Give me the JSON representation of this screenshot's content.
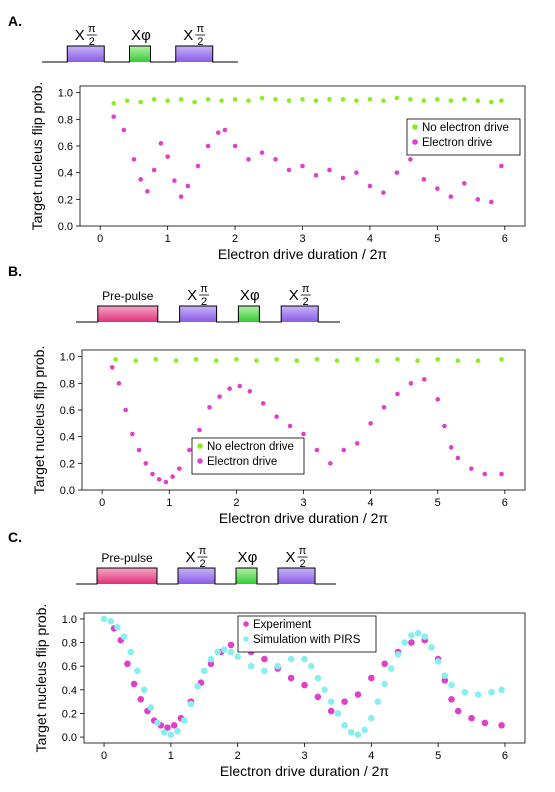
{
  "colors": {
    "green_marker": "#88ee22",
    "magenta_marker": "#e040c8",
    "cyan_marker": "#88eeee",
    "pulse_purple": "#8a5ce6",
    "pulse_green": "#33cc33",
    "pulse_magenta": "#e0307a"
  },
  "panels": [
    {
      "label": "A.",
      "pulses": [
        {
          "kind": "x-pi2",
          "prefix": "X",
          "num": "π",
          "den": "2",
          "color": "purple"
        },
        {
          "kind": "x-phi",
          "prefix": "X",
          "sym": "φ",
          "color": "green"
        },
        {
          "kind": "x-pi2",
          "prefix": "X",
          "num": "π",
          "den": "2",
          "color": "purple"
        }
      ]
    },
    {
      "label": "B.",
      "pulses": [
        {
          "kind": "pre",
          "text": "Pre-pulse",
          "color": "magenta"
        },
        {
          "kind": "x-pi2",
          "prefix": "X",
          "num": "π",
          "den": "2",
          "color": "purple"
        },
        {
          "kind": "x-phi",
          "prefix": "X",
          "sym": "φ",
          "color": "green"
        },
        {
          "kind": "x-pi2",
          "prefix": "X",
          "num": "π",
          "den": "2",
          "color": "purple"
        }
      ]
    },
    {
      "label": "C.",
      "pulses": [
        {
          "kind": "pre",
          "text": "Pre-pulse",
          "color": "magenta"
        },
        {
          "kind": "x-pi2",
          "prefix": "X",
          "num": "π",
          "den": "2",
          "color": "purple"
        },
        {
          "kind": "x-phi",
          "prefix": "X",
          "sym": "φ",
          "color": "green"
        },
        {
          "kind": "x-pi2",
          "prefix": "X",
          "num": "π",
          "den": "2",
          "color": "purple"
        }
      ]
    }
  ],
  "chart_data": [
    {
      "type": "scatter",
      "xlabel": "Electron drive duration / 2π",
      "ylabel": "Target nucleus flip prob.",
      "xlim": [
        -0.3,
        6.3
      ],
      "ylim": [
        0,
        1.05
      ],
      "xticks": [
        "0",
        "1",
        "2",
        "3",
        "4",
        "5",
        "6"
      ],
      "yticks": [
        "0.0",
        "0.2",
        "0.4",
        "0.6",
        "0.8",
        "1.0"
      ],
      "legend": {
        "position": "right",
        "entries": [
          "No electron drive",
          "Electron drive"
        ]
      },
      "series": [
        {
          "name": "No electron drive",
          "color": "green",
          "points": [
            [
              0.2,
              0.92
            ],
            [
              0.4,
              0.94
            ],
            [
              0.6,
              0.93
            ],
            [
              0.8,
              0.95
            ],
            [
              1.0,
              0.94
            ],
            [
              1.2,
              0.95
            ],
            [
              1.4,
              0.93
            ],
            [
              1.6,
              0.95
            ],
            [
              1.8,
              0.94
            ],
            [
              2.0,
              0.95
            ],
            [
              2.2,
              0.94
            ],
            [
              2.4,
              0.96
            ],
            [
              2.6,
              0.95
            ],
            [
              2.8,
              0.94
            ],
            [
              3.0,
              0.95
            ],
            [
              3.2,
              0.94
            ],
            [
              3.4,
              0.95
            ],
            [
              3.6,
              0.95
            ],
            [
              3.8,
              0.94
            ],
            [
              4.0,
              0.95
            ],
            [
              4.2,
              0.94
            ],
            [
              4.4,
              0.96
            ],
            [
              4.6,
              0.95
            ],
            [
              4.8,
              0.94
            ],
            [
              5.0,
              0.95
            ],
            [
              5.2,
              0.94
            ],
            [
              5.4,
              0.95
            ],
            [
              5.6,
              0.94
            ],
            [
              5.8,
              0.93
            ],
            [
              5.95,
              0.94
            ]
          ]
        },
        {
          "name": "Electron drive",
          "color": "magenta",
          "points": [
            [
              0.2,
              0.82
            ],
            [
              0.35,
              0.72
            ],
            [
              0.5,
              0.5
            ],
            [
              0.6,
              0.35
            ],
            [
              0.7,
              0.26
            ],
            [
              0.8,
              0.42
            ],
            [
              0.9,
              0.62
            ],
            [
              1.0,
              0.52
            ],
            [
              1.1,
              0.34
            ],
            [
              1.2,
              0.22
            ],
            [
              1.3,
              0.3
            ],
            [
              1.45,
              0.45
            ],
            [
              1.6,
              0.6
            ],
            [
              1.75,
              0.7
            ],
            [
              1.85,
              0.72
            ],
            [
              2.0,
              0.6
            ],
            [
              2.2,
              0.5
            ],
            [
              2.4,
              0.55
            ],
            [
              2.6,
              0.5
            ],
            [
              2.8,
              0.42
            ],
            [
              3.0,
              0.45
            ],
            [
              3.2,
              0.38
            ],
            [
              3.4,
              0.42
            ],
            [
              3.6,
              0.36
            ],
            [
              3.8,
              0.4
            ],
            [
              4.0,
              0.3
            ],
            [
              4.2,
              0.25
            ],
            [
              4.4,
              0.4
            ],
            [
              4.6,
              0.5
            ],
            [
              4.8,
              0.35
            ],
            [
              5.0,
              0.28
            ],
            [
              5.2,
              0.22
            ],
            [
              5.4,
              0.32
            ],
            [
              5.6,
              0.2
            ],
            [
              5.8,
              0.18
            ],
            [
              5.95,
              0.45
            ]
          ]
        }
      ]
    },
    {
      "type": "scatter",
      "xlabel": "Electron drive duration / 2π",
      "ylabel": "Target nucleus flip prob.",
      "xlim": [
        -0.3,
        6.3
      ],
      "ylim": [
        0,
        1.05
      ],
      "xticks": [
        "0",
        "1",
        "2",
        "3",
        "4",
        "5",
        "6"
      ],
      "yticks": [
        "0.0",
        "0.2",
        "0.4",
        "0.6",
        "0.8",
        "1.0"
      ],
      "legend": {
        "position": "bottom-left",
        "entries": [
          "No electron drive",
          "Electron drive"
        ]
      },
      "series": [
        {
          "name": "No electron drive",
          "color": "green",
          "points": [
            [
              0.2,
              0.98
            ],
            [
              0.5,
              0.97
            ],
            [
              0.8,
              0.98
            ],
            [
              1.1,
              0.97
            ],
            [
              1.4,
              0.98
            ],
            [
              1.7,
              0.97
            ],
            [
              2.0,
              0.98
            ],
            [
              2.3,
              0.97
            ],
            [
              2.6,
              0.98
            ],
            [
              2.9,
              0.97
            ],
            [
              3.2,
              0.98
            ],
            [
              3.5,
              0.97
            ],
            [
              3.8,
              0.98
            ],
            [
              4.1,
              0.97
            ],
            [
              4.4,
              0.98
            ],
            [
              4.7,
              0.97
            ],
            [
              5.0,
              0.98
            ],
            [
              5.3,
              0.97
            ],
            [
              5.6,
              0.97
            ],
            [
              5.95,
              0.98
            ]
          ]
        },
        {
          "name": "Electron drive",
          "color": "magenta",
          "points": [
            [
              0.15,
              0.92
            ],
            [
              0.25,
              0.8
            ],
            [
              0.35,
              0.6
            ],
            [
              0.45,
              0.42
            ],
            [
              0.55,
              0.3
            ],
            [
              0.65,
              0.2
            ],
            [
              0.75,
              0.12
            ],
            [
              0.85,
              0.08
            ],
            [
              0.95,
              0.06
            ],
            [
              1.05,
              0.1
            ],
            [
              1.15,
              0.16
            ],
            [
              1.3,
              0.3
            ],
            [
              1.45,
              0.45
            ],
            [
              1.6,
              0.62
            ],
            [
              1.75,
              0.7
            ],
            [
              1.9,
              0.76
            ],
            [
              2.05,
              0.78
            ],
            [
              2.2,
              0.74
            ],
            [
              2.4,
              0.65
            ],
            [
              2.6,
              0.55
            ],
            [
              2.8,
              0.48
            ],
            [
              3.0,
              0.42
            ],
            [
              3.2,
              0.3
            ],
            [
              3.4,
              0.2
            ],
            [
              3.6,
              0.3
            ],
            [
              3.8,
              0.35
            ],
            [
              4.0,
              0.5
            ],
            [
              4.2,
              0.62
            ],
            [
              4.4,
              0.72
            ],
            [
              4.6,
              0.8
            ],
            [
              4.8,
              0.83
            ],
            [
              5.0,
              0.68
            ],
            [
              5.1,
              0.48
            ],
            [
              5.2,
              0.32
            ],
            [
              5.3,
              0.24
            ],
            [
              5.5,
              0.16
            ],
            [
              5.7,
              0.12
            ],
            [
              5.95,
              0.12
            ]
          ]
        }
      ]
    },
    {
      "type": "scatter",
      "xlabel": "Electron drive duration / 2π",
      "ylabel": "Target nucleus flip prob.",
      "xlim": [
        -0.3,
        6.3
      ],
      "ylim": [
        -0.05,
        1.05
      ],
      "xticks": [
        "0",
        "1",
        "2",
        "3",
        "4",
        "5",
        "6"
      ],
      "yticks": [
        "0.0",
        "0.2",
        "0.4",
        "0.6",
        "0.8",
        "1.0"
      ],
      "legend": {
        "position": "top-center",
        "entries": [
          "Experiment",
          "Simulation with PIRS"
        ]
      },
      "series": [
        {
          "name": "Experiment",
          "color": "magenta",
          "points": [
            [
              0.15,
              0.92
            ],
            [
              0.25,
              0.82
            ],
            [
              0.35,
              0.62
            ],
            [
              0.45,
              0.45
            ],
            [
              0.55,
              0.32
            ],
            [
              0.65,
              0.22
            ],
            [
              0.75,
              0.14
            ],
            [
              0.85,
              0.1
            ],
            [
              0.95,
              0.08
            ],
            [
              1.05,
              0.1
            ],
            [
              1.15,
              0.16
            ],
            [
              1.3,
              0.3
            ],
            [
              1.45,
              0.46
            ],
            [
              1.6,
              0.62
            ],
            [
              1.75,
              0.72
            ],
            [
              1.9,
              0.78
            ],
            [
              2.05,
              0.76
            ],
            [
              2.2,
              0.72
            ],
            [
              2.4,
              0.66
            ],
            [
              2.6,
              0.58
            ],
            [
              2.8,
              0.5
            ],
            [
              3.0,
              0.44
            ],
            [
              3.2,
              0.34
            ],
            [
              3.4,
              0.22
            ],
            [
              3.6,
              0.3
            ],
            [
              3.8,
              0.36
            ],
            [
              4.0,
              0.5
            ],
            [
              4.2,
              0.62
            ],
            [
              4.4,
              0.72
            ],
            [
              4.6,
              0.8
            ],
            [
              4.8,
              0.82
            ],
            [
              5.0,
              0.66
            ],
            [
              5.1,
              0.48
            ],
            [
              5.2,
              0.32
            ],
            [
              5.3,
              0.22
            ],
            [
              5.5,
              0.16
            ],
            [
              5.7,
              0.12
            ],
            [
              5.95,
              0.1
            ]
          ]
        },
        {
          "name": "Simulation with PIRS",
          "color": "cyan",
          "points": [
            [
              0.0,
              1.0
            ],
            [
              0.1,
              0.98
            ],
            [
              0.2,
              0.93
            ],
            [
              0.3,
              0.85
            ],
            [
              0.4,
              0.72
            ],
            [
              0.5,
              0.56
            ],
            [
              0.6,
              0.4
            ],
            [
              0.7,
              0.25
            ],
            [
              0.8,
              0.12
            ],
            [
              0.9,
              0.04
            ],
            [
              1.0,
              0.02
            ],
            [
              1.1,
              0.05
            ],
            [
              1.2,
              0.14
            ],
            [
              1.3,
              0.28
            ],
            [
              1.4,
              0.43
            ],
            [
              1.5,
              0.56
            ],
            [
              1.6,
              0.66
            ],
            [
              1.7,
              0.72
            ],
            [
              1.8,
              0.74
            ],
            [
              1.9,
              0.72
            ],
            [
              2.0,
              0.68
            ],
            [
              2.2,
              0.6
            ],
            [
              2.4,
              0.56
            ],
            [
              2.6,
              0.6
            ],
            [
              2.8,
              0.66
            ],
            [
              3.0,
              0.66
            ],
            [
              3.1,
              0.6
            ],
            [
              3.2,
              0.5
            ],
            [
              3.3,
              0.4
            ],
            [
              3.4,
              0.3
            ],
            [
              3.5,
              0.2
            ],
            [
              3.6,
              0.1
            ],
            [
              3.7,
              0.04
            ],
            [
              3.8,
              0.02
            ],
            [
              3.9,
              0.06
            ],
            [
              4.0,
              0.16
            ],
            [
              4.1,
              0.3
            ],
            [
              4.2,
              0.45
            ],
            [
              4.3,
              0.58
            ],
            [
              4.4,
              0.7
            ],
            [
              4.5,
              0.8
            ],
            [
              4.6,
              0.86
            ],
            [
              4.7,
              0.88
            ],
            [
              4.8,
              0.85
            ],
            [
              4.9,
              0.76
            ],
            [
              5.0,
              0.64
            ],
            [
              5.1,
              0.52
            ],
            [
              5.2,
              0.44
            ],
            [
              5.4,
              0.38
            ],
            [
              5.6,
              0.36
            ],
            [
              5.8,
              0.38
            ],
            [
              5.95,
              0.4
            ]
          ]
        }
      ]
    }
  ]
}
